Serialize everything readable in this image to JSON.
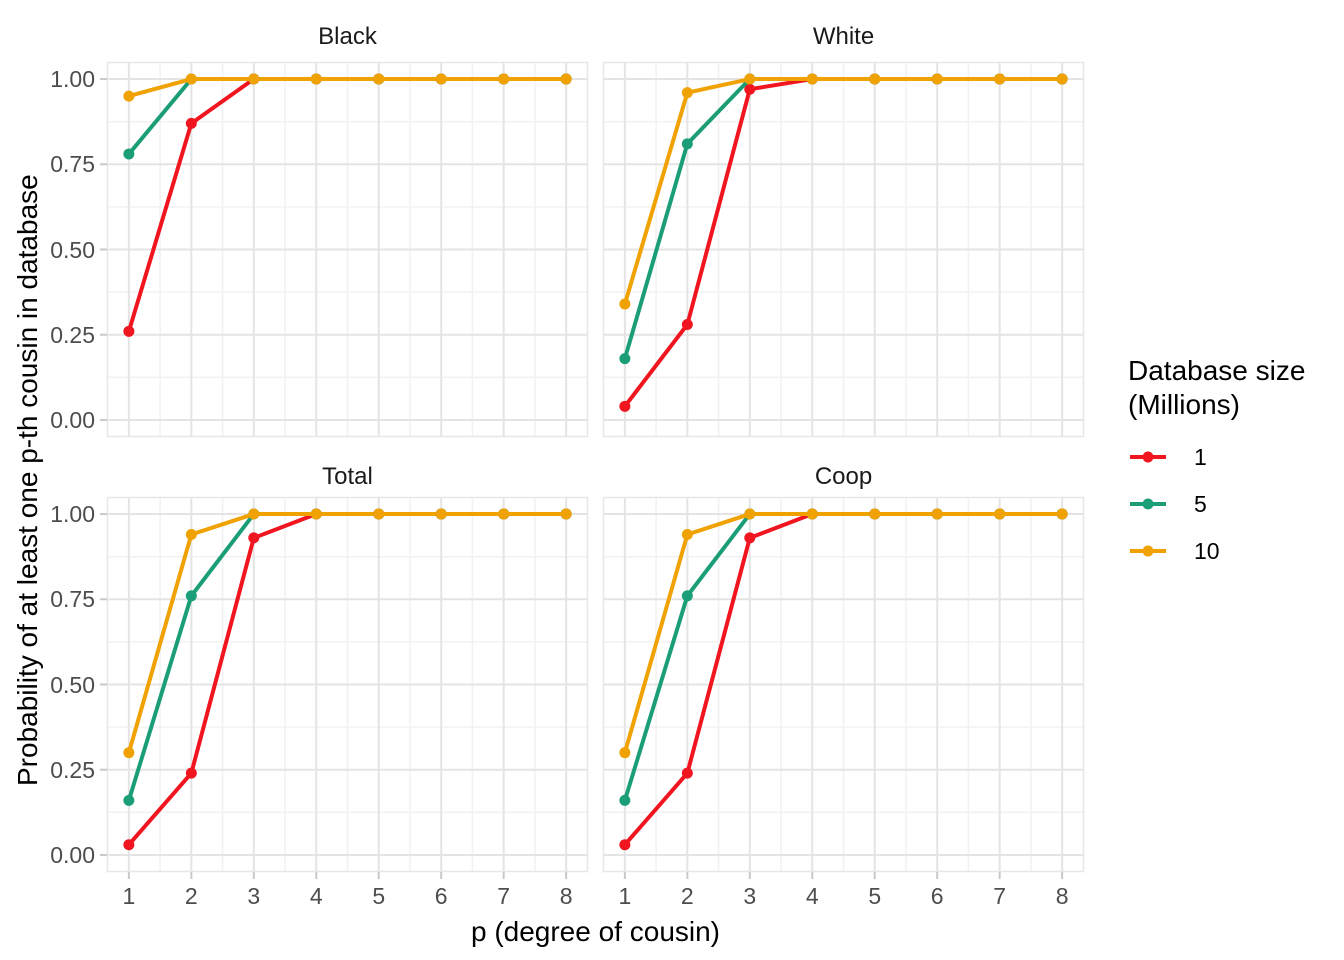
{
  "chart_data": {
    "type": "line",
    "title": "",
    "xlabel": "p (degree of cousin)",
    "ylabel": "Probability of at least one p-th cousin in database",
    "x": [
      1,
      2,
      3,
      4,
      5,
      6,
      7,
      8
    ],
    "xlim": [
      0.65,
      8.35
    ],
    "ylim": [
      -0.05,
      1.05
    ],
    "xticks": [
      "1",
      "2",
      "3",
      "4",
      "5",
      "6",
      "7",
      "8"
    ],
    "yticks": [
      {
        "v": 0.0,
        "label": "0.00"
      },
      {
        "v": 0.25,
        "label": "0.25"
      },
      {
        "v": 0.5,
        "label": "0.50"
      },
      {
        "v": 0.75,
        "label": "0.75"
      },
      {
        "v": 1.0,
        "label": "1.00"
      }
    ],
    "grid": "major and minor, light grey on white; legend right; 2x2 facets",
    "facets": [
      {
        "title": "Black",
        "series": [
          {
            "name": "1",
            "values": [
              0.26,
              0.87,
              1,
              1,
              1,
              1,
              1,
              1
            ]
          },
          {
            "name": "5",
            "values": [
              0.78,
              1.0,
              1,
              1,
              1,
              1,
              1,
              1
            ]
          },
          {
            "name": "10",
            "values": [
              0.95,
              1.0,
              1,
              1,
              1,
              1,
              1,
              1
            ]
          }
        ]
      },
      {
        "title": "White",
        "series": [
          {
            "name": "1",
            "values": [
              0.04,
              0.28,
              0.97,
              1,
              1,
              1,
              1,
              1
            ]
          },
          {
            "name": "5",
            "values": [
              0.18,
              0.81,
              1.0,
              1,
              1,
              1,
              1,
              1
            ]
          },
          {
            "name": "10",
            "values": [
              0.34,
              0.96,
              1.0,
              1,
              1,
              1,
              1,
              1
            ]
          }
        ]
      },
      {
        "title": "Total",
        "series": [
          {
            "name": "1",
            "values": [
              0.03,
              0.24,
              0.93,
              1,
              1,
              1,
              1,
              1
            ]
          },
          {
            "name": "5",
            "values": [
              0.16,
              0.76,
              1.0,
              1,
              1,
              1,
              1,
              1
            ]
          },
          {
            "name": "10",
            "values": [
              0.3,
              0.94,
              1.0,
              1,
              1,
              1,
              1,
              1
            ]
          }
        ]
      },
      {
        "title": "Coop",
        "series": [
          {
            "name": "1",
            "values": [
              0.03,
              0.24,
              0.93,
              1,
              1,
              1,
              1,
              1
            ]
          },
          {
            "name": "5",
            "values": [
              0.16,
              0.76,
              1.0,
              1,
              1,
              1,
              1,
              1
            ]
          },
          {
            "name": "10",
            "values": [
              0.3,
              0.94,
              1.0,
              1,
              1,
              1,
              1,
              1
            ]
          }
        ]
      }
    ],
    "legend": {
      "position": "right",
      "title_lines": [
        "Database size",
        "(Millions)"
      ],
      "entries": [
        {
          "label": "1",
          "color": "#F0151F"
        },
        {
          "label": "5",
          "color": "#1B9E77"
        },
        {
          "label": "10",
          "color": "#EFA202"
        }
      ]
    },
    "style": {
      "series_colors": {
        "1": "#F0151F",
        "5": "#1B9E77",
        "10": "#EFA202"
      },
      "grid_major": "#E4E4E4",
      "grid_minor": "#F2F2F2",
      "panel_border": "#E7E7E7",
      "tick_mark": "#C9C9C9",
      "tick_label_color": "#4D4D4D",
      "facet_title_color": "#1A1A1A",
      "title_color": "#000000",
      "background": "#FFFFFF"
    }
  }
}
